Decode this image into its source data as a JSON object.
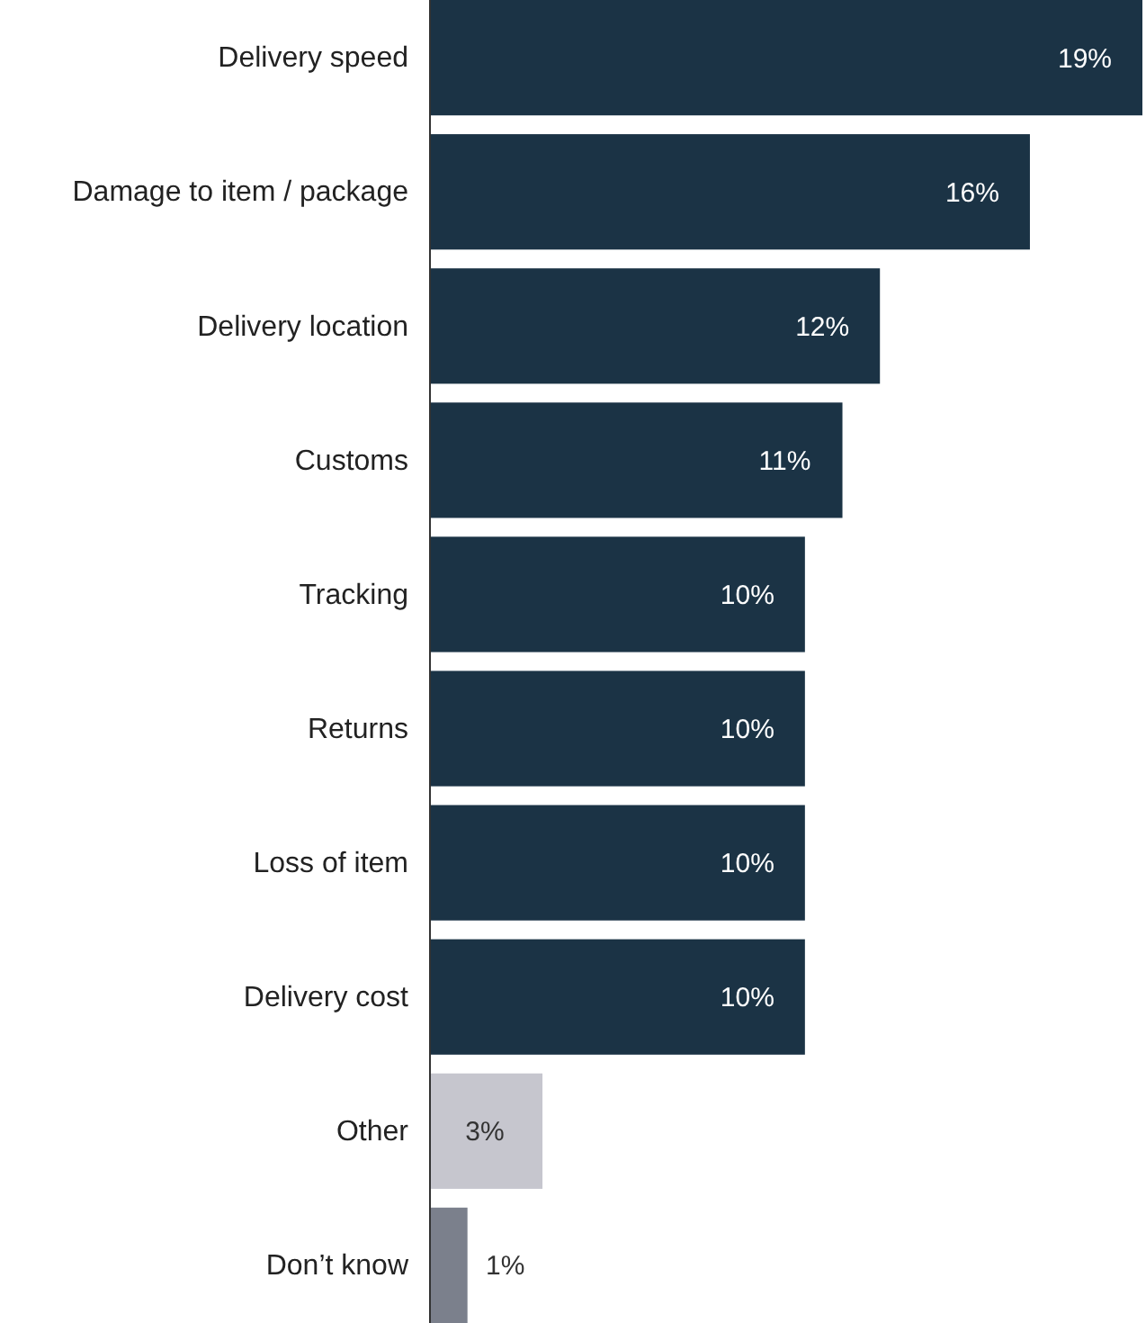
{
  "chart_data": {
    "type": "bar",
    "orientation": "horizontal",
    "categories": [
      "Delivery speed",
      "Damage to item / package",
      "Delivery location",
      "Customs",
      "Tracking",
      "Returns",
      "Loss of item",
      "Delivery cost",
      "Other",
      "Don’t know"
    ],
    "values": [
      19,
      16,
      12,
      11,
      10,
      10,
      10,
      10,
      3,
      1
    ],
    "value_labels": [
      "19%",
      "16%",
      "12%",
      "11%",
      "10%",
      "10%",
      "10%",
      "10%",
      "3%",
      "1%"
    ],
    "colors": [
      "#1b3345",
      "#1b3345",
      "#1b3345",
      "#1b3345",
      "#1b3345",
      "#1b3345",
      "#1b3345",
      "#1b3345",
      "#c6c6ce",
      "#7b808c"
    ],
    "tick_labels": "y"
  }
}
